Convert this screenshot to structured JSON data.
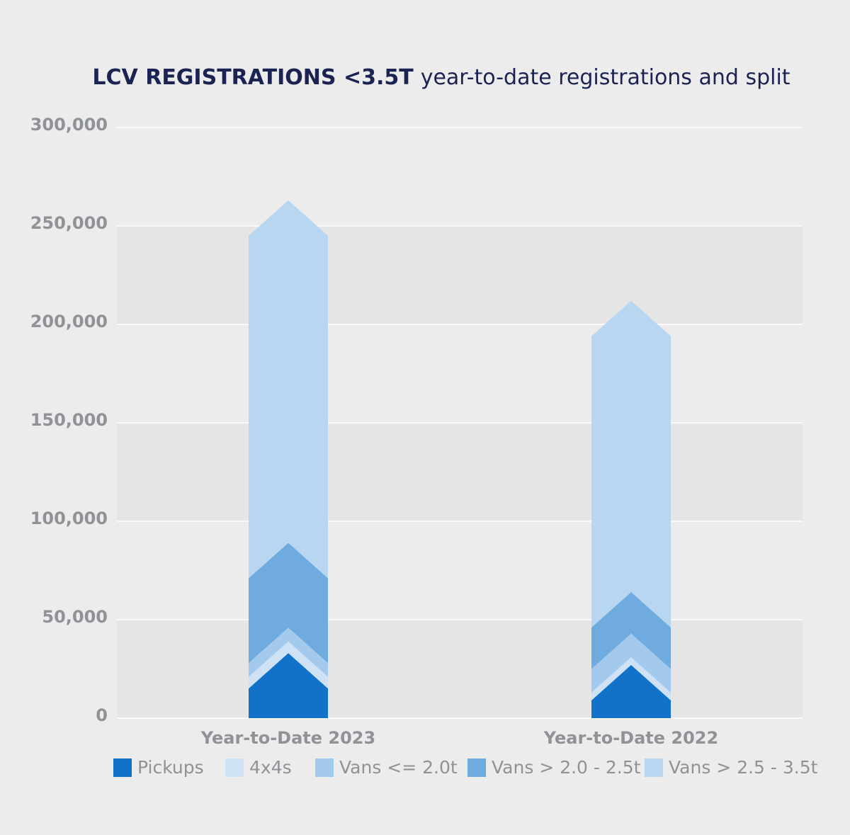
{
  "chart_data": {
    "type": "bar",
    "stacked": true,
    "title_bold": "LCV REGISTRATIONS <3.5T",
    "title_rest": "year-to-date registrations and split",
    "categories": [
      "Year-to-Date 2023",
      "Year-to-Date 2022"
    ],
    "ylim": [
      0,
      300000
    ],
    "yticks": [
      0,
      50000,
      100000,
      150000,
      200000,
      250000,
      300000
    ],
    "ytick_labels": [
      "0",
      "50,000",
      "100,000",
      "150,000",
      "200,000",
      "250,000",
      "300,000"
    ],
    "grid": true,
    "legend_position": "bottom",
    "series": [
      {
        "name": "Pickups",
        "color": "#1272c9",
        "values": [
          15000,
          9000
        ]
      },
      {
        "name": "4x4s",
        "color": "#cfe1f4",
        "values": [
          6000,
          4000
        ]
      },
      {
        "name": "Vans <= 2.0t",
        "color": "#a3c9ec",
        "values": [
          7000,
          12000
        ]
      },
      {
        "name": "Vans > 2.0 - 2.5t",
        "color": "#70abe0",
        "values": [
          43000,
          21000
        ]
      },
      {
        "name": "Vans > 2.5 - 3.5t",
        "color": "#b8d6ef",
        "values": [
          174000,
          148000
        ]
      }
    ]
  }
}
